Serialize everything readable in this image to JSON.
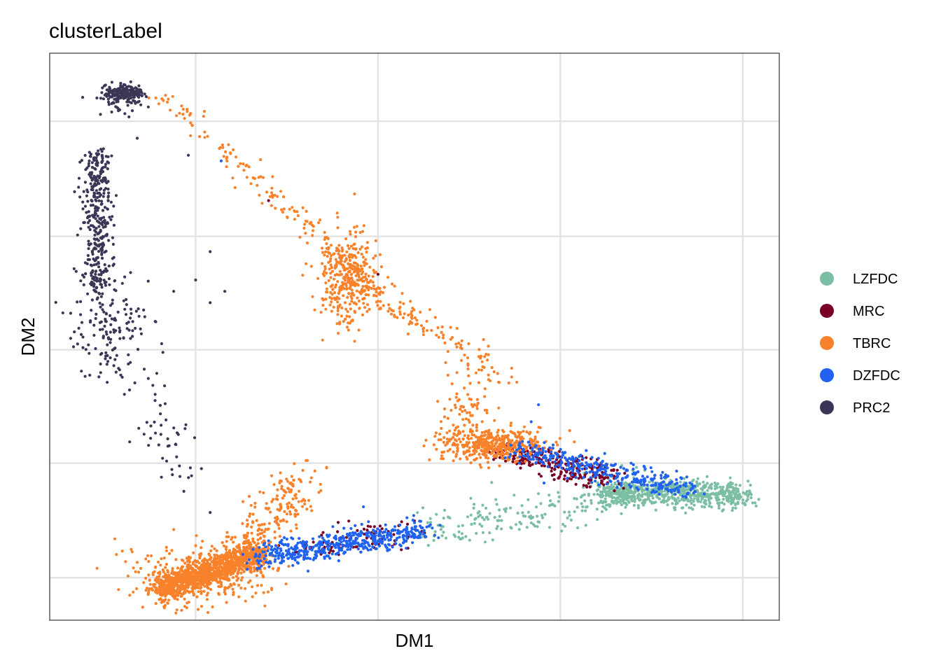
{
  "chart_data": {
    "type": "scatter",
    "title": "clusterLabel",
    "xlabel": "DM1",
    "ylabel": "DM2",
    "grid": true,
    "tick_labels_shown": false,
    "x_range": [
      0.0,
      1.0
    ],
    "y_range": [
      0.0,
      1.0
    ],
    "legend_position": "right",
    "series": [
      {
        "name": "LZFDC",
        "color": "#7BBEA3",
        "regions": [
          {
            "kind": "segment",
            "from": [
              0.755,
              0.225
            ],
            "to": [
              0.955,
              0.22
            ],
            "spread": 0.012,
            "n": 650
          },
          {
            "kind": "segment",
            "from": [
              0.52,
              0.16
            ],
            "to": [
              0.77,
              0.21
            ],
            "spread": 0.018,
            "n": 160
          },
          {
            "kind": "blob",
            "center": [
              0.8,
              0.23
            ],
            "spread": [
              0.04,
              0.02
            ],
            "n": 60
          }
        ]
      },
      {
        "name": "MRC",
        "color": "#7A0025",
        "regions": [
          {
            "kind": "segment",
            "from": [
              0.62,
              0.3
            ],
            "to": [
              0.77,
              0.25
            ],
            "spread": 0.012,
            "n": 260
          },
          {
            "kind": "segment",
            "from": [
              0.33,
              0.12
            ],
            "to": [
              0.5,
              0.16
            ],
            "spread": 0.012,
            "n": 90
          },
          {
            "kind": "scatter",
            "points": [
              [
                0.3,
                0.74
              ],
              [
                0.45,
                0.61
              ],
              [
                0.41,
                0.175
              ]
            ]
          }
        ]
      },
      {
        "name": "TBRC",
        "color": "#F8822B",
        "regions": [
          {
            "kind": "segment",
            "from": [
              0.15,
              0.055
            ],
            "to": [
              0.29,
              0.12
            ],
            "spread": 0.012,
            "n": 1150
          },
          {
            "kind": "blob",
            "center": [
              0.2,
              0.075
            ],
            "spread": [
              0.05,
              0.03
            ],
            "n": 260
          },
          {
            "kind": "segment",
            "from": [
              0.26,
              0.12
            ],
            "to": [
              0.35,
              0.25
            ],
            "spread": 0.02,
            "n": 200
          },
          {
            "kind": "blob",
            "center": [
              0.61,
              0.31
            ],
            "spread": [
              0.035,
              0.015
            ],
            "n": 430
          },
          {
            "kind": "blob",
            "center": [
              0.57,
              0.36
            ],
            "spread": [
              0.02,
              0.04
            ],
            "n": 80
          },
          {
            "kind": "segment",
            "from": [
              0.15,
              0.93
            ],
            "to": [
              0.5,
              0.52
            ],
            "spread": 0.01,
            "n": 180
          },
          {
            "kind": "blob",
            "center": [
              0.41,
              0.6
            ],
            "spread": [
              0.02,
              0.04
            ],
            "n": 330
          },
          {
            "kind": "segment",
            "from": [
              0.43,
              0.6
            ],
            "to": [
              0.64,
              0.41
            ],
            "spread": 0.012,
            "n": 90
          }
        ]
      },
      {
        "name": "DZFDC",
        "color": "#1F63F0",
        "regions": [
          {
            "kind": "segment",
            "from": [
              0.28,
              0.11
            ],
            "to": [
              0.52,
              0.16
            ],
            "spread": 0.011,
            "n": 480
          },
          {
            "kind": "segment",
            "from": [
              0.64,
              0.3
            ],
            "to": [
              0.88,
              0.23
            ],
            "spread": 0.011,
            "n": 330
          },
          {
            "kind": "scatter",
            "points": [
              [
                0.235,
                0.81
              ],
              [
                0.67,
                0.38
              ],
              [
                0.43,
                0.2
              ],
              [
                0.3,
                0.14
              ],
              [
                0.66,
                0.35
              ]
            ]
          }
        ]
      },
      {
        "name": "PRC2",
        "color": "#3C3656",
        "regions": [
          {
            "kind": "blob",
            "center": [
              0.1,
              0.93
            ],
            "spread": [
              0.015,
              0.007
            ],
            "n": 170
          },
          {
            "kind": "segment",
            "from": [
              0.08,
              0.9
            ],
            "to": [
              0.12,
              0.93
            ],
            "spread": 0.01,
            "n": 40
          },
          {
            "kind": "segment",
            "from": [
              0.065,
              0.83
            ],
            "to": [
              0.065,
              0.58
            ],
            "spread": 0.01,
            "n": 350
          },
          {
            "kind": "blob",
            "center": [
              0.08,
              0.52
            ],
            "spread": [
              0.025,
              0.05
            ],
            "n": 140
          },
          {
            "kind": "segment",
            "from": [
              0.11,
              0.47
            ],
            "to": [
              0.18,
              0.24
            ],
            "spread": 0.02,
            "n": 60
          },
          {
            "kind": "scatter",
            "points": [
              [
                0.19,
                0.82
              ],
              [
                0.2,
                0.6
              ],
              [
                0.24,
                0.58
              ],
              [
                0.22,
                0.56
              ],
              [
                0.17,
                0.58
              ],
              [
                0.12,
                0.85
              ],
              [
                0.22,
                0.19
              ],
              [
                0.22,
                0.65
              ]
            ]
          }
        ]
      }
    ]
  }
}
